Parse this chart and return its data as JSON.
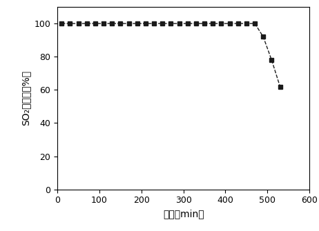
{
  "x_data": [
    10,
    30,
    50,
    70,
    90,
    110,
    130,
    150,
    170,
    190,
    210,
    230,
    250,
    270,
    290,
    310,
    330,
    350,
    370,
    390,
    410,
    430,
    450,
    470,
    490,
    510,
    530
  ],
  "y_data": [
    100,
    100,
    100,
    100,
    100,
    100,
    100,
    100,
    100,
    100,
    100,
    100,
    100,
    100,
    100,
    100,
    100,
    100,
    100,
    100,
    100,
    100,
    100,
    100,
    92,
    78,
    62
  ],
  "xlabel": "时间（min）",
  "ylabel": "SO₂去除率（%）",
  "xlim": [
    0,
    600
  ],
  "ylim": [
    0,
    110
  ],
  "yticks": [
    0,
    20,
    40,
    60,
    80,
    100
  ],
  "xticks": [
    0,
    100,
    200,
    300,
    400,
    500,
    600
  ],
  "line_color": "#1a1a1a",
  "marker": "s",
  "marker_size": 5,
  "marker_color": "#1a1a1a",
  "line_width": 1.0,
  "background_color": "#ffffff"
}
